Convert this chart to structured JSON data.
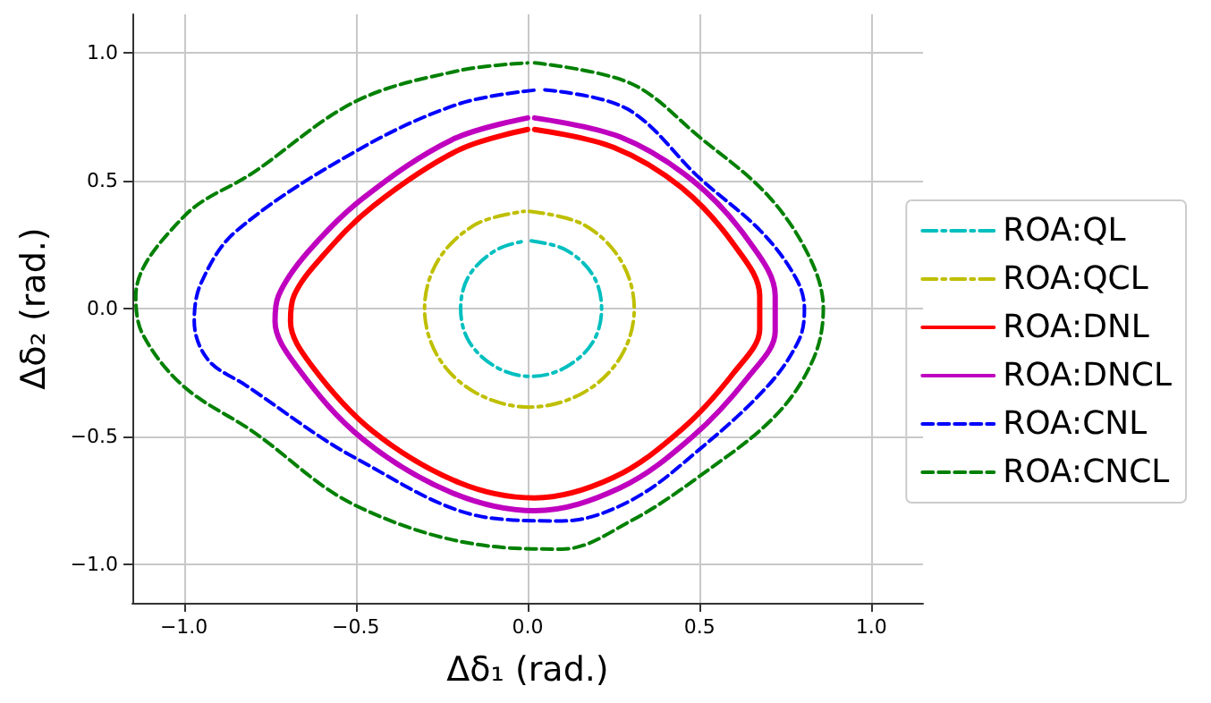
{
  "chart_data": {
    "type": "line",
    "xlabel": "Δδ₁ (rad.)",
    "ylabel": "Δδ₂ (rad.)",
    "xlim": [
      -1.15,
      1.15
    ],
    "ylim": [
      -1.15,
      1.15
    ],
    "xticks": [
      {
        "value": -1,
        "label": "−1.0"
      },
      {
        "value": -0.5,
        "label": "−0.5"
      },
      {
        "value": 0,
        "label": "0.0"
      },
      {
        "value": 0.5,
        "label": "0.5"
      },
      {
        "value": 1,
        "label": "1.0"
      }
    ],
    "yticks": [
      {
        "value": -1,
        "label": "−1.0"
      },
      {
        "value": -0.5,
        "label": "−0.5"
      },
      {
        "value": 0,
        "label": "0.0"
      },
      {
        "value": 0.5,
        "label": "0.5"
      },
      {
        "value": 1,
        "label": "1.0"
      }
    ],
    "grid": true,
    "legend": "right",
    "marker": "none",
    "series": [
      {
        "name": "ROA:QL",
        "color": "#00bfbf",
        "line_style": "dashdot",
        "x": [
          0.01,
          0.11,
          0.19,
          0.215,
          0.19,
          0.11,
          0.01,
          -0.09,
          -0.17,
          -0.195,
          -0.17,
          -0.09,
          -0.005
        ],
        "values": [
          0.265,
          0.23,
          0.13,
          0,
          -0.13,
          -0.23,
          -0.265,
          -0.23,
          -0.13,
          0,
          0.13,
          0.23,
          0.265
        ]
      },
      {
        "name": "ROA:QCL",
        "color": "#bfbf00",
        "line_style": "dashdot",
        "x": [
          0.005,
          0.16,
          0.27,
          0.31,
          0.27,
          0.16,
          0.005,
          -0.15,
          -0.26,
          -0.3,
          -0.26,
          -0.15,
          -0.01
        ],
        "values": [
          0.38,
          0.33,
          0.19,
          0,
          -0.19,
          -0.33,
          -0.385,
          -0.33,
          -0.19,
          0,
          0.19,
          0.33,
          0.38
        ]
      },
      {
        "name": "ROA:DNL",
        "color": "#ff0000",
        "line_style": "solid",
        "x": [
          0.02,
          0.25,
          0.45,
          0.6,
          0.675,
          0.675,
          0.6,
          0.45,
          0.25,
          0.02,
          -0.2,
          -0.45,
          -0.63,
          -0.69,
          -0.68,
          -0.6,
          -0.45,
          -0.2,
          0.0
        ],
        "values": [
          0.7,
          0.63,
          0.47,
          0.25,
          0.05,
          -0.08,
          -0.25,
          -0.47,
          -0.66,
          -0.74,
          -0.68,
          -0.48,
          -0.22,
          -0.05,
          0.05,
          0.2,
          0.4,
          0.62,
          0.7
        ]
      },
      {
        "name": "ROA:DNCL",
        "color": "#bf00bf",
        "line_style": "solid",
        "x": [
          0.02,
          0.27,
          0.48,
          0.64,
          0.72,
          0.72,
          0.64,
          0.48,
          0.27,
          0.02,
          -0.22,
          -0.48,
          -0.67,
          -0.735,
          -0.725,
          -0.64,
          -0.48,
          -0.22,
          0.0
        ],
        "values": [
          0.745,
          0.67,
          0.5,
          0.27,
          0.05,
          -0.09,
          -0.27,
          -0.5,
          -0.7,
          -0.79,
          -0.72,
          -0.51,
          -0.23,
          -0.05,
          0.05,
          0.22,
          0.43,
          0.66,
          0.745
        ]
      },
      {
        "name": "ROA:CNL",
        "color": "#0000ff",
        "line_style": "dashed",
        "x": [
          0.05,
          0.29,
          0.5,
          0.68,
          0.78,
          0.805,
          0.79,
          0.7,
          0.5,
          0.3,
          0.1,
          -0.1,
          -0.5,
          -0.82,
          -0.93,
          -0.97,
          -0.95,
          -0.85,
          -0.5,
          -0.2,
          0.03
        ],
        "values": [
          0.855,
          0.78,
          0.51,
          0.3,
          0.12,
          0,
          -0.12,
          -0.3,
          -0.55,
          -0.75,
          -0.83,
          -0.82,
          -0.585,
          -0.3,
          -0.2,
          -0.05,
          0.1,
          0.3,
          0.615,
          0.8,
          0.855
        ]
      },
      {
        "name": "ROA:CNCL",
        "color": "#008000",
        "line_style": "dashed",
        "x": [
          0.02,
          0.3,
          0.5,
          0.7,
          0.82,
          0.86,
          0.83,
          0.72,
          0.5,
          0.3,
          0.1,
          -0.1,
          -0.5,
          -0.8,
          -1.0,
          -1.12,
          -1.14,
          -1.0,
          -0.8,
          -0.5,
          -0.2,
          0.0
        ],
        "values": [
          0.96,
          0.88,
          0.67,
          0.44,
          0.2,
          0,
          -0.2,
          -0.42,
          -0.655,
          -0.83,
          -0.94,
          -0.93,
          -0.77,
          -0.48,
          -0.305,
          -0.1,
          0.05,
          0.36,
          0.53,
          0.81,
          0.93,
          0.96
        ]
      }
    ]
  }
}
